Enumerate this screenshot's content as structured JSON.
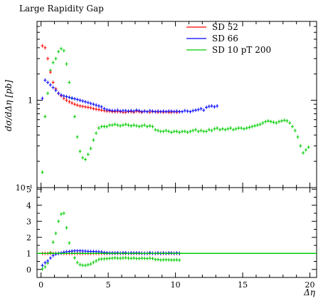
{
  "chart_data": {
    "type": "scatter",
    "title": "Large Rapidity Gap",
    "xlabel": "Δη",
    "ylabel": "dσ/dΔη [pb]",
    "xlim": [
      -0.3,
      20.5
    ],
    "ylim_main": [
      0.1,
      8
    ],
    "yscale_main": "log",
    "ylim_ratio": [
      -0.5,
      5.1
    ],
    "x_ticks": [
      0,
      5,
      10,
      15,
      20
    ],
    "y_ticks_main": [
      {
        "value": 1,
        "label": "1"
      },
      {
        "value": 0.1,
        "label": "10⁻¹"
      }
    ],
    "y_ticks_ratio": [
      0,
      1,
      2,
      3,
      4,
      5
    ],
    "legend_position": "top-right",
    "ratio_reference": 1,
    "series": [
      {
        "name": "SD 52",
        "color": "#ff0000",
        "x": [
          0.1,
          0.3,
          0.5,
          0.7,
          0.9,
          1.1,
          1.3,
          1.5,
          1.7,
          1.9,
          2.1,
          2.3,
          2.5,
          2.7,
          2.9,
          3.1,
          3.3,
          3.5,
          3.7,
          3.9,
          4.1,
          4.3,
          4.5,
          4.7,
          4.9,
          5.1,
          5.3,
          5.5,
          5.7,
          5.9,
          6.1,
          6.3,
          6.5,
          6.7,
          6.9,
          7.1,
          7.3,
          7.5,
          7.7,
          7.9,
          8.1,
          8.3,
          8.5,
          8.7,
          8.9,
          9.1,
          9.3,
          9.5,
          9.7,
          9.9,
          10.1,
          10.3
        ],
        "y": [
          4.2,
          4.0,
          3.0,
          2.1,
          1.6,
          1.35,
          1.2,
          1.12,
          1.05,
          1.0,
          0.96,
          0.93,
          0.9,
          0.88,
          0.86,
          0.85,
          0.84,
          0.83,
          0.82,
          0.8,
          0.79,
          0.78,
          0.77,
          0.76,
          0.75,
          0.75,
          0.74,
          0.74,
          0.74,
          0.74,
          0.73,
          0.73,
          0.74,
          0.74,
          0.73,
          0.75,
          0.74,
          0.73,
          0.75,
          0.74,
          0.73,
          0.74,
          0.74,
          0.73,
          0.74,
          0.73,
          0.74,
          0.73,
          0.73,
          0.74,
          0.73,
          0.74
        ]
      },
      {
        "name": "SD 66",
        "color": "#0000ff",
        "x": [
          0.1,
          0.3,
          0.5,
          0.7,
          0.9,
          1.1,
          1.3,
          1.5,
          1.7,
          1.9,
          2.1,
          2.3,
          2.5,
          2.7,
          2.9,
          3.1,
          3.3,
          3.5,
          3.7,
          3.9,
          4.1,
          4.3,
          4.5,
          4.7,
          4.9,
          5.1,
          5.3,
          5.5,
          5.7,
          5.9,
          6.1,
          6.3,
          6.5,
          6.7,
          6.9,
          7.1,
          7.3,
          7.5,
          7.7,
          7.9,
          8.1,
          8.3,
          8.5,
          8.7,
          8.9,
          9.1,
          9.3,
          9.5,
          9.7,
          9.9,
          10.1,
          10.3,
          10.5,
          10.7,
          10.9,
          11.1,
          11.3,
          11.5,
          11.7,
          11.9,
          12.1,
          12.3,
          12.5,
          12.7,
          12.9,
          13.1
        ],
        "y": [
          1.05,
          1.7,
          1.6,
          1.5,
          1.4,
          1.3,
          1.2,
          1.15,
          1.12,
          1.1,
          1.08,
          1.06,
          1.04,
          1.02,
          1.0,
          0.98,
          0.96,
          0.94,
          0.92,
          0.9,
          0.88,
          0.86,
          0.84,
          0.8,
          0.78,
          0.77,
          0.76,
          0.76,
          0.77,
          0.75,
          0.76,
          0.76,
          0.75,
          0.76,
          0.75,
          0.77,
          0.76,
          0.74,
          0.75,
          0.74,
          0.76,
          0.75,
          0.74,
          0.75,
          0.74,
          0.75,
          0.74,
          0.75,
          0.75,
          0.74,
          0.75,
          0.74,
          0.74,
          0.76,
          0.75,
          0.74,
          0.76,
          0.77,
          0.78,
          0.8,
          0.77,
          0.83,
          0.85,
          0.86,
          0.84,
          0.86
        ]
      },
      {
        "name": "SD 10 pT 200",
        "color": "#00cc00",
        "x": [
          0.1,
          0.3,
          0.5,
          0.7,
          0.9,
          1.1,
          1.3,
          1.5,
          1.7,
          1.9,
          2.1,
          2.3,
          2.5,
          2.7,
          2.9,
          3.1,
          3.3,
          3.5,
          3.7,
          3.9,
          4.1,
          4.3,
          4.5,
          4.7,
          4.9,
          5.1,
          5.3,
          5.5,
          5.7,
          5.9,
          6.1,
          6.3,
          6.5,
          6.7,
          6.9,
          7.1,
          7.3,
          7.5,
          7.7,
          7.9,
          8.1,
          8.3,
          8.5,
          8.7,
          8.9,
          9.1,
          9.3,
          9.5,
          9.7,
          9.9,
          10.1,
          10.3,
          10.5,
          10.7,
          10.9,
          11.1,
          11.3,
          11.5,
          11.7,
          11.9,
          12.1,
          12.3,
          12.5,
          12.7,
          12.9,
          13.1,
          13.3,
          13.5,
          13.7,
          13.9,
          14.1,
          14.3,
          14.5,
          14.7,
          14.9,
          15.1,
          15.3,
          15.5,
          15.7,
          15.9,
          16.1,
          16.3,
          16.5,
          16.7,
          16.9,
          17.1,
          17.3,
          17.5,
          17.7,
          17.9,
          18.1,
          18.3,
          18.5,
          18.7,
          18.9,
          19.1,
          19.3,
          19.5,
          19.7,
          19.9
        ],
        "y": [
          0.15,
          0.65,
          1.2,
          2.2,
          2.7,
          3.0,
          3.6,
          3.9,
          3.7,
          2.6,
          1.6,
          1.05,
          0.65,
          0.38,
          0.26,
          0.22,
          0.21,
          0.24,
          0.28,
          0.35,
          0.42,
          0.48,
          0.5,
          0.5,
          0.5,
          0.52,
          0.52,
          0.53,
          0.52,
          0.51,
          0.52,
          0.53,
          0.52,
          0.51,
          0.52,
          0.51,
          0.5,
          0.51,
          0.52,
          0.5,
          0.51,
          0.5,
          0.46,
          0.45,
          0.44,
          0.44,
          0.45,
          0.44,
          0.43,
          0.44,
          0.44,
          0.43,
          0.44,
          0.44,
          0.43,
          0.44,
          0.45,
          0.46,
          0.44,
          0.45,
          0.44,
          0.44,
          0.46,
          0.45,
          0.47,
          0.48,
          0.46,
          0.47,
          0.46,
          0.47,
          0.48,
          0.46,
          0.47,
          0.48,
          0.48,
          0.47,
          0.48,
          0.49,
          0.5,
          0.51,
          0.52,
          0.53,
          0.55,
          0.57,
          0.58,
          0.57,
          0.56,
          0.55,
          0.57,
          0.58,
          0.59,
          0.58,
          0.55,
          0.5,
          0.45,
          0.38,
          0.3,
          0.25,
          0.27,
          0.29
        ]
      }
    ],
    "ratio_series": [
      {
        "name": "SD 52",
        "color": "#ff0000",
        "x": [
          0.1,
          0.3,
          0.5,
          0.7,
          0.9,
          1.1,
          1.3,
          1.5,
          1.7,
          1.9,
          2.1,
          2.3,
          2.5,
          2.7,
          2.9,
          3.1,
          3.3,
          3.5,
          3.7,
          3.9,
          4.1,
          4.3,
          4.5,
          4.7,
          4.9,
          5.1,
          5.3,
          5.5,
          5.7,
          5.9,
          6.1,
          6.3,
          6.5,
          6.7,
          6.9,
          7.1,
          7.3,
          7.5,
          7.7,
          7.9,
          8.1,
          8.3,
          8.5,
          8.7,
          8.9,
          9.1,
          9.3,
          9.5,
          9.7,
          9.9,
          10.1,
          10.3
        ],
        "y": [
          1,
          1,
          1,
          1,
          1,
          1,
          1,
          1,
          1,
          1,
          1,
          1,
          1,
          1,
          1,
          1,
          1,
          1,
          1,
          1,
          1,
          1,
          1,
          1,
          1,
          1,
          1,
          1,
          1,
          1,
          1,
          1,
          1,
          1,
          1,
          1,
          1,
          1,
          1,
          1,
          1,
          1,
          1,
          1,
          1,
          1,
          1,
          1,
          1,
          1,
          1,
          1
        ]
      },
      {
        "name": "SD 66",
        "color": "#0000ff",
        "x": [
          0.1,
          0.3,
          0.5,
          0.7,
          0.9,
          1.1,
          1.3,
          1.5,
          1.7,
          1.9,
          2.1,
          2.3,
          2.5,
          2.7,
          2.9,
          3.1,
          3.3,
          3.5,
          3.7,
          3.9,
          4.1,
          4.3,
          4.5,
          4.7,
          4.9,
          5.1,
          5.3,
          5.5,
          5.7,
          5.9,
          6.1,
          6.3,
          6.5,
          6.7,
          6.9,
          7.1,
          7.3,
          7.5,
          7.7,
          7.9,
          8.1,
          8.3,
          8.5,
          8.7,
          8.9,
          9.1,
          9.3,
          9.5,
          9.7,
          9.9,
          10.1,
          10.3
        ],
        "y": [
          0.25,
          0.42,
          0.53,
          0.71,
          0.87,
          0.96,
          1.0,
          1.03,
          1.07,
          1.1,
          1.12,
          1.14,
          1.16,
          1.16,
          1.16,
          1.15,
          1.14,
          1.13,
          1.12,
          1.12,
          1.11,
          1.1,
          1.09,
          1.05,
          1.04,
          1.03,
          1.03,
          1.03,
          1.04,
          1.01,
          1.04,
          1.04,
          1.01,
          1.03,
          1.03,
          1.03,
          1.03,
          1.01,
          1.0,
          1.0,
          1.04,
          1.01,
          1.0,
          1.03,
          1.0,
          1.03,
          1.0,
          1.03,
          1.03,
          1.0,
          1.03,
          1.0
        ]
      },
      {
        "name": "SD 10 pT 200",
        "color": "#00cc00",
        "x": [
          0.1,
          0.3,
          0.5,
          0.7,
          0.9,
          1.1,
          1.3,
          1.5,
          1.7,
          1.9,
          2.1,
          2.3,
          2.5,
          2.7,
          2.9,
          3.1,
          3.3,
          3.5,
          3.7,
          3.9,
          4.1,
          4.3,
          4.5,
          4.7,
          4.9,
          5.1,
          5.3,
          5.5,
          5.7,
          5.9,
          6.1,
          6.3,
          6.5,
          6.7,
          6.9,
          7.1,
          7.3,
          7.5,
          7.7,
          7.9,
          8.1,
          8.3,
          8.5,
          8.7,
          8.9,
          9.1,
          9.3,
          9.5,
          9.7,
          9.9,
          10.1,
          10.3
        ],
        "y": [
          0.03,
          0.16,
          0.4,
          1.05,
          1.7,
          2.25,
          3.0,
          3.45,
          3.5,
          2.6,
          1.65,
          1.13,
          0.72,
          0.43,
          0.3,
          0.26,
          0.25,
          0.29,
          0.34,
          0.44,
          0.53,
          0.62,
          0.65,
          0.66,
          0.67,
          0.69,
          0.7,
          0.72,
          0.7,
          0.69,
          0.71,
          0.73,
          0.7,
          0.69,
          0.71,
          0.68,
          0.68,
          0.7,
          0.69,
          0.68,
          0.7,
          0.68,
          0.62,
          0.62,
          0.59,
          0.6,
          0.61,
          0.6,
          0.59,
          0.59,
          0.6,
          0.58
        ]
      }
    ]
  }
}
